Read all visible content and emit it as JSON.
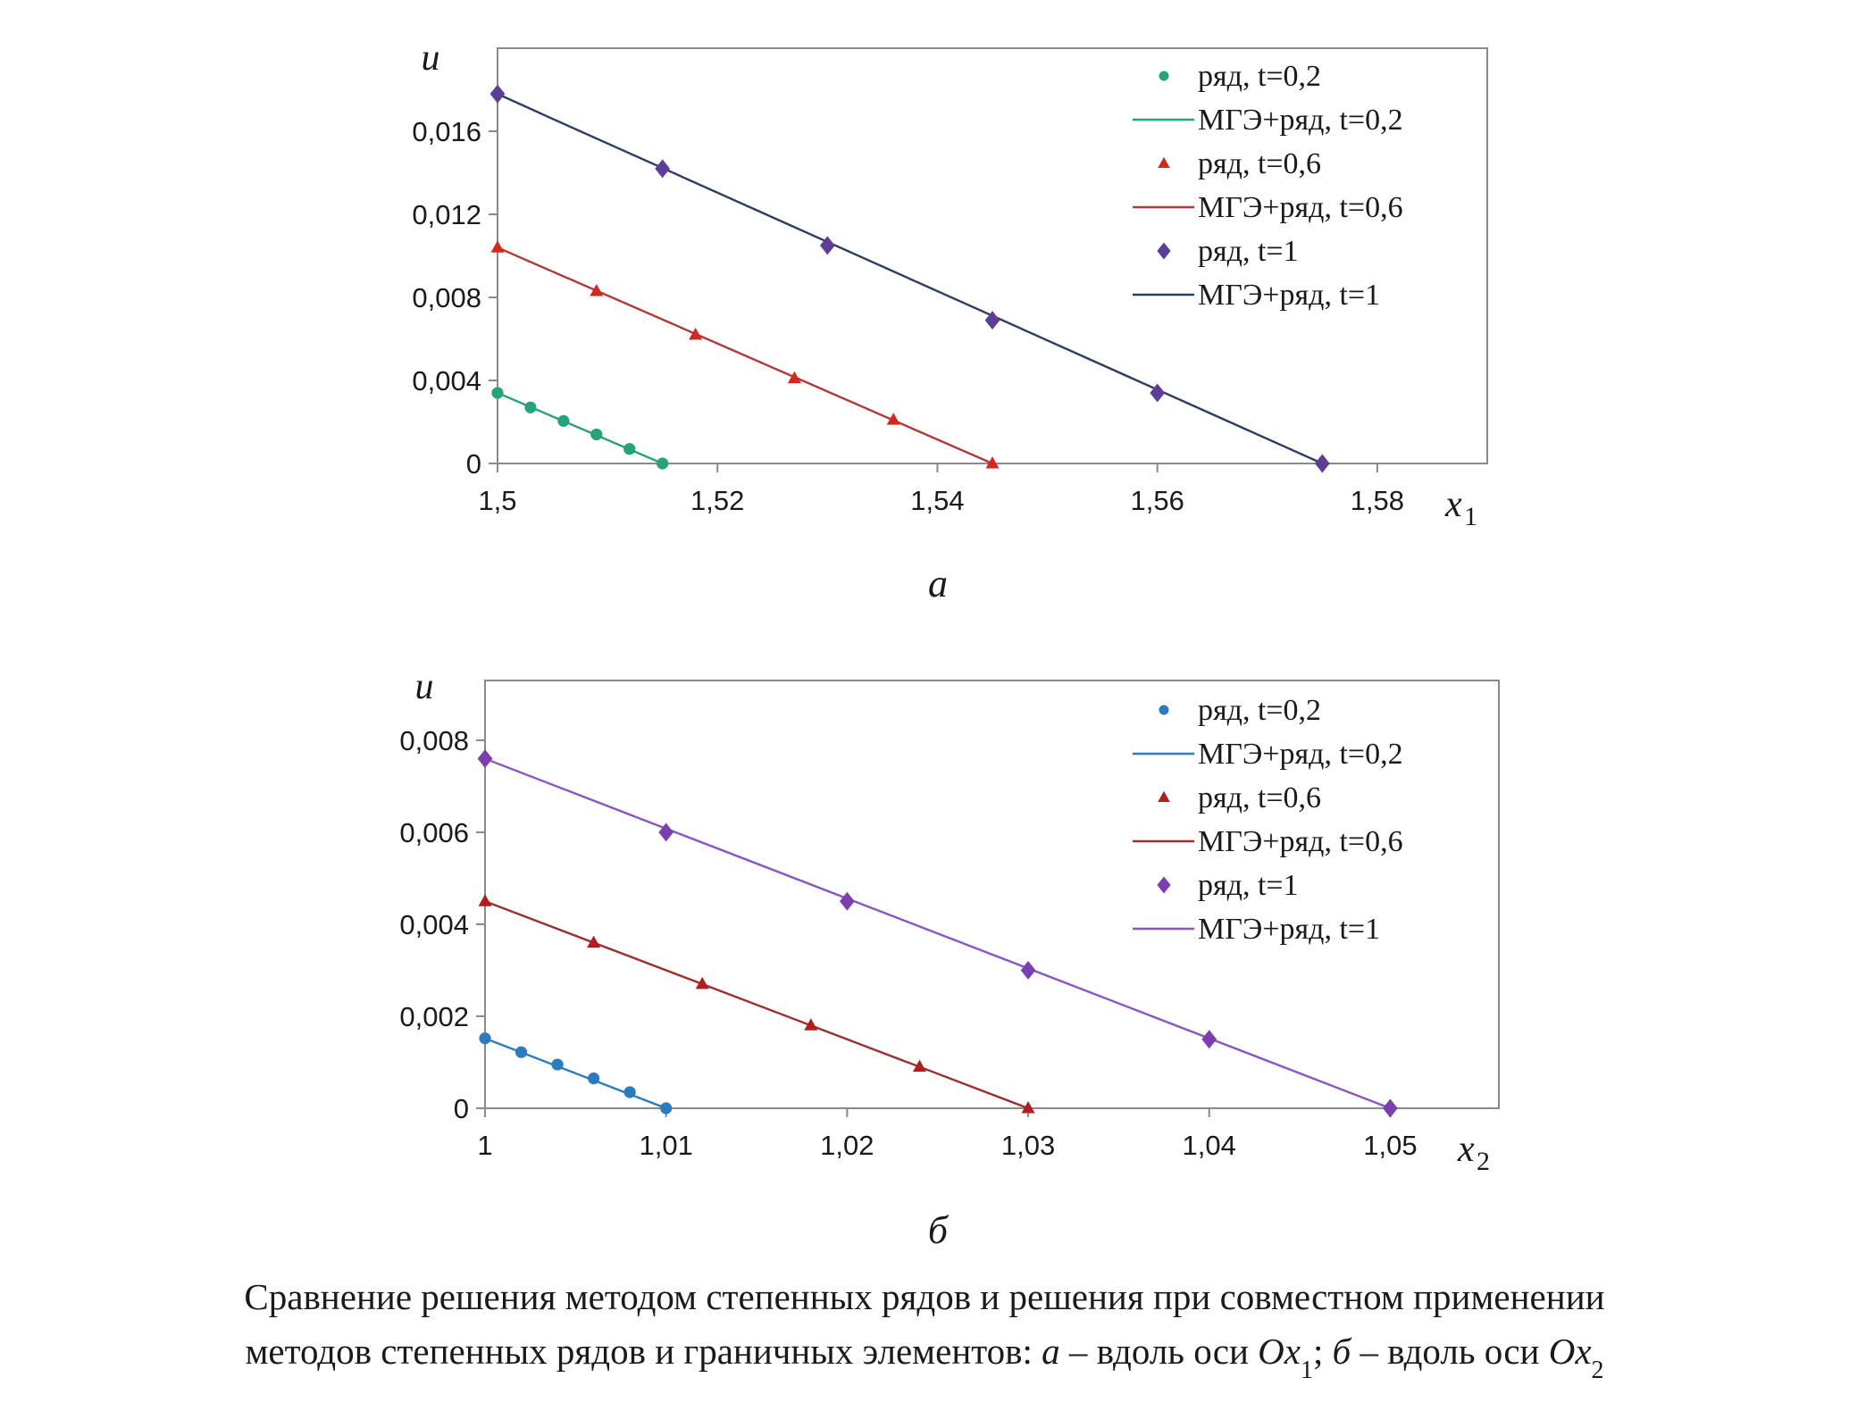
{
  "chart_data": [
    {
      "type": "line",
      "panel_label": "а",
      "ylabel": "u",
      "xlabel": "x",
      "xlabel_sub": "1",
      "xlim": [
        1.5,
        1.59
      ],
      "ylim": [
        0,
        0.02
      ],
      "xticks": [
        1.5,
        1.52,
        1.54,
        1.56,
        1.58
      ],
      "xtick_labels": [
        "1,5",
        "1,52",
        "1,54",
        "1,56",
        "1,58"
      ],
      "yticks": [
        0,
        0.004,
        0.008,
        0.012,
        0.016
      ],
      "ytick_labels": [
        "0",
        "0,004",
        "0,008",
        "0,012",
        "0,016"
      ],
      "grid": false,
      "legend_position": "top-right",
      "series": [
        {
          "name": "ряд, t=0,2",
          "kind": "markers",
          "marker": "circle",
          "color": "#27a37a",
          "x": [
            1.5,
            1.503,
            1.506,
            1.509,
            1.512,
            1.515
          ],
          "y": [
            0.0034,
            0.0027,
            0.00205,
            0.0014,
            0.0007,
            0.0
          ]
        },
        {
          "name": "МГЭ+ряд, t=0,2",
          "kind": "line",
          "color": "#27a37a",
          "x": [
            1.5,
            1.515
          ],
          "y": [
            0.0034,
            0.0
          ]
        },
        {
          "name": "ряд, t=0,6",
          "kind": "markers",
          "marker": "triangle",
          "color": "#d22a1f",
          "x": [
            1.5,
            1.509,
            1.518,
            1.527,
            1.536,
            1.545
          ],
          "y": [
            0.0104,
            0.0083,
            0.0062,
            0.0041,
            0.0021,
            0.0
          ]
        },
        {
          "name": "МГЭ+ряд, t=0,6",
          "kind": "line",
          "color": "#b03a3a",
          "x": [
            1.5,
            1.545
          ],
          "y": [
            0.0104,
            0.0
          ]
        },
        {
          "name": "ряд, t=1",
          "kind": "markers",
          "marker": "diamond",
          "color": "#5b3e96",
          "x": [
            1.5,
            1.515,
            1.53,
            1.545,
            1.56,
            1.575
          ],
          "y": [
            0.0178,
            0.0142,
            0.0105,
            0.0069,
            0.0034,
            0.0
          ]
        },
        {
          "name": "МГЭ+ряд, t=1",
          "kind": "line",
          "color": "#2c3e63",
          "x": [
            1.5,
            1.505,
            1.575
          ],
          "y": [
            0.0178,
            0.0166,
            0.0
          ]
        }
      ]
    },
    {
      "type": "line",
      "panel_label": "б",
      "ylabel": "u",
      "xlabel": "x",
      "xlabel_sub": "2",
      "xlim": [
        1.0,
        1.056
      ],
      "ylim": [
        0,
        0.0093
      ],
      "xticks": [
        1.0,
        1.01,
        1.02,
        1.03,
        1.04,
        1.05
      ],
      "xtick_labels": [
        "1",
        "1,01",
        "1,02",
        "1,03",
        "1,04",
        "1,05"
      ],
      "yticks": [
        0,
        0.002,
        0.004,
        0.006,
        0.008
      ],
      "ytick_labels": [
        "0",
        "0,002",
        "0,004",
        "0,006",
        "0,008"
      ],
      "grid": false,
      "legend_position": "top-right",
      "series": [
        {
          "name": "ряд, t=0,2",
          "kind": "markers",
          "marker": "circle",
          "color": "#2b7bc0",
          "x": [
            1.0,
            1.002,
            1.004,
            1.006,
            1.008,
            1.01
          ],
          "y": [
            0.00152,
            0.00122,
            0.00095,
            0.00065,
            0.00035,
            0.0
          ]
        },
        {
          "name": "МГЭ+ряд, t=0,2",
          "kind": "line",
          "color": "#2b7bc0",
          "x": [
            1.0,
            1.01
          ],
          "y": [
            0.00152,
            0.0
          ]
        },
        {
          "name": "ряд, t=0,6",
          "kind": "markers",
          "marker": "triangle",
          "color": "#b01e1e",
          "x": [
            1.0,
            1.006,
            1.012,
            1.018,
            1.024,
            1.03
          ],
          "y": [
            0.0045,
            0.0036,
            0.0027,
            0.0018,
            0.0009,
            0.0
          ]
        },
        {
          "name": "МГЭ+ряд, t=0,6",
          "kind": "line",
          "color": "#9a3030",
          "x": [
            1.0,
            1.03
          ],
          "y": [
            0.0045,
            0.0
          ]
        },
        {
          "name": "ряд, t=1",
          "kind": "markers",
          "marker": "diamond",
          "color": "#7b3fb0",
          "x": [
            1.0,
            1.01,
            1.02,
            1.03,
            1.04,
            1.05
          ],
          "y": [
            0.0076,
            0.006,
            0.0045,
            0.003,
            0.0015,
            0.0
          ]
        },
        {
          "name": "МГЭ+ряд, t=1",
          "kind": "line",
          "color": "#8a55c0",
          "x": [
            1.0,
            1.05
          ],
          "y": [
            0.0076,
            0.0
          ]
        }
      ]
    }
  ],
  "caption": {
    "line1": "Сравнение решения методом степенных рядов и решения при совместном применении",
    "line2_a": "методов степенных рядов и граничных элементов: ",
    "line2_b": "а",
    "line2_c": " – вдоль оси ",
    "line2_d": "Ox",
    "line2_e": "1",
    "line2_f": "; ",
    "line2_g": "б",
    "line2_h": " – вдоль оси ",
    "line2_i": "Ox",
    "line2_j": "2"
  }
}
